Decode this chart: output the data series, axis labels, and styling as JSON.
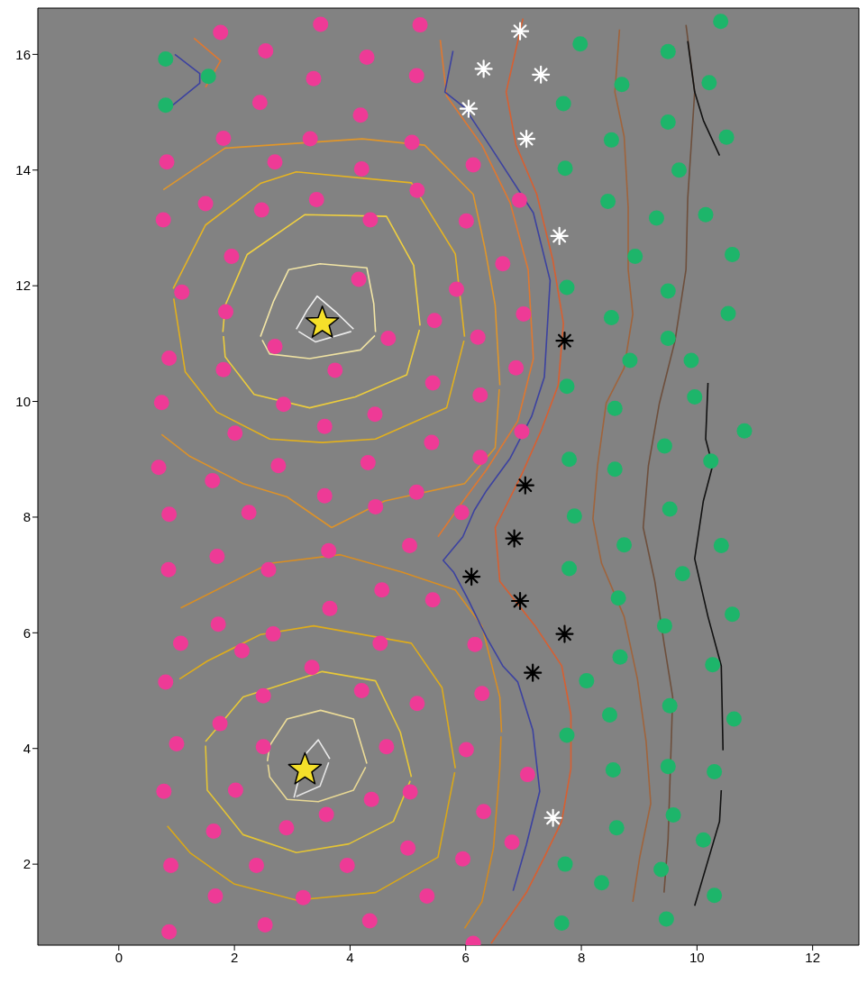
{
  "chart_data": {
    "type": "scatter",
    "xlim": [
      -1.4,
      12.8
    ],
    "ylim": [
      0.6,
      16.8
    ],
    "xticks": [
      0,
      2,
      4,
      6,
      8,
      10,
      12
    ],
    "yticks": [
      2,
      4,
      6,
      8,
      10,
      12,
      14,
      16
    ],
    "series": [
      {
        "type": "line",
        "marker": "none",
        "color": "#f2f2f2",
        "x": [
          3.07,
          3.26,
          3.43,
          3.75,
          4.06
        ],
        "values": [
          11.25,
          11.58,
          11.82,
          11.55,
          11.25
        ]
      },
      {
        "type": "line",
        "marker": "none",
        "color": "#ececec",
        "x": [
          3.11,
          3.4,
          4.02
        ],
        "values": [
          11.21,
          11.03,
          11.21
        ]
      },
      {
        "type": "line",
        "marker": "none",
        "color": "#e8e8e8",
        "x": [
          3.03,
          3.22,
          3.45,
          3.65
        ],
        "values": [
          3.15,
          3.89,
          4.15,
          3.82
        ]
      },
      {
        "type": "line",
        "marker": "none",
        "color": "#e4e4e4",
        "x": [
          3.07,
          3.48,
          3.63
        ],
        "values": [
          3.17,
          3.35,
          3.76
        ]
      },
      {
        "type": "line",
        "marker": "none",
        "color": "#f3e6a6",
        "x": [
          2.45,
          2.68,
          2.94,
          3.48,
          4.29,
          4.41,
          4.44
        ],
        "values": [
          11.12,
          11.74,
          12.28,
          12.38,
          12.31,
          11.69,
          11.2
        ]
      },
      {
        "type": "line",
        "marker": "none",
        "color": "#efe2a2",
        "x": [
          2.48,
          2.61,
          3.3,
          4.18,
          4.43
        ],
        "values": [
          11.06,
          10.82,
          10.74,
          10.89,
          11.14
        ]
      },
      {
        "type": "line",
        "marker": "none",
        "color": "#ecdc98",
        "x": [
          2.57,
          2.61,
          2.91,
          3.49,
          4.06,
          4.29
        ],
        "values": [
          3.78,
          4.05,
          4.51,
          4.66,
          4.51,
          3.74
        ]
      },
      {
        "type": "line",
        "marker": "none",
        "color": "#e8d894",
        "x": [
          2.58,
          2.61,
          2.91,
          3.45,
          4.06,
          4.27
        ],
        "values": [
          3.72,
          3.51,
          3.12,
          3.08,
          3.28,
          3.68
        ]
      },
      {
        "type": "line",
        "marker": "none",
        "color": "#f0d040",
        "x": [
          1.8,
          1.84,
          2.22,
          3.22,
          4.63,
          5.1,
          5.21
        ],
        "values": [
          11.2,
          11.66,
          12.54,
          13.23,
          13.2,
          12.35,
          11.31
        ]
      },
      {
        "type": "line",
        "marker": "none",
        "color": "#eccc3c",
        "x": [
          1.81,
          1.84,
          2.34,
          3.3,
          4.09,
          4.98,
          5.2
        ],
        "values": [
          11.13,
          10.77,
          10.12,
          9.89,
          10.08,
          10.46,
          11.24
        ]
      },
      {
        "type": "line",
        "marker": "none",
        "color": "#e8c838",
        "x": [
          1.5,
          2.15,
          3.52,
          4.44,
          4.87,
          5.06
        ],
        "values": [
          4.12,
          4.89,
          5.33,
          5.17,
          4.28,
          3.51
        ]
      },
      {
        "type": "line",
        "marker": "none",
        "color": "#e4c434",
        "x": [
          1.5,
          1.53,
          2.15,
          3.07,
          3.98,
          4.75,
          5.04
        ],
        "values": [
          4.05,
          3.28,
          2.51,
          2.2,
          2.35,
          2.74,
          3.44
        ]
      },
      {
        "type": "line",
        "marker": "none",
        "color": "#e6b422",
        "x": [
          0.94,
          1.5,
          2.45,
          3.07,
          5.06,
          5.82,
          5.98
        ],
        "values": [
          11.95,
          13.05,
          13.77,
          13.97,
          13.78,
          12.55,
          11.12
        ]
      },
      {
        "type": "line",
        "marker": "none",
        "color": "#e2b01e",
        "x": [
          0.95,
          1.15,
          1.69,
          2.61,
          3.52,
          4.44,
          5.67,
          5.97
        ],
        "values": [
          11.78,
          10.51,
          9.82,
          9.35,
          9.29,
          9.35,
          9.89,
          11.05
        ]
      },
      {
        "type": "line",
        "marker": "none",
        "color": "#deac1c",
        "x": [
          1.05,
          1.53,
          2.45,
          3.37,
          5.06,
          5.59,
          5.82
        ],
        "values": [
          5.2,
          5.51,
          5.97,
          6.12,
          5.82,
          5.05,
          3.66
        ]
      },
      {
        "type": "line",
        "marker": "none",
        "color": "#daa818",
        "x": [
          0.84,
          1.23,
          1.99,
          3.07,
          4.44,
          5.52,
          5.81
        ],
        "values": [
          2.66,
          2.2,
          1.66,
          1.38,
          1.51,
          2.12,
          3.59
        ]
      },
      {
        "type": "line",
        "marker": "none",
        "color": "#e0962a",
        "x": [
          0.77,
          1.84,
          4.21,
          5.29,
          6.13,
          6.33,
          6.51,
          6.59
        ],
        "values": [
          13.66,
          14.38,
          14.54,
          14.43,
          13.58,
          12.66,
          11.66,
          10.28
        ]
      },
      {
        "type": "line",
        "marker": "none",
        "color": "#dc922a",
        "x": [
          0.74,
          1.23,
          2.15,
          2.91,
          3.68,
          4.6,
          5.98,
          6.51,
          6.58
        ],
        "values": [
          9.43,
          9.05,
          8.58,
          8.35,
          7.82,
          8.28,
          8.58,
          9.2,
          10.21
        ]
      },
      {
        "type": "line",
        "marker": "none",
        "color": "#d88e24",
        "x": [
          1.07,
          2.61,
          3.83,
          4.9,
          5.82,
          6.28,
          6.59,
          6.62
        ],
        "values": [
          6.43,
          7.2,
          7.35,
          7.05,
          6.74,
          6.12,
          4.89,
          4.28
        ]
      },
      {
        "type": "line",
        "marker": "none",
        "color": "#d48a20",
        "x": [
          5.98,
          6.28,
          6.48,
          6.59,
          6.61
        ],
        "values": [
          0.89,
          1.35,
          2.28,
          3.66,
          4.21
        ]
      },
      {
        "type": "line",
        "marker": "none",
        "color": "#e07830",
        "x": [
          5.56,
          5.67,
          6.28,
          6.77,
          7.08,
          7.17,
          6.9,
          6.36,
          5.9,
          5.52
        ],
        "values": [
          16.25,
          15.28,
          14.43,
          13.43,
          12.28,
          10.74,
          9.66,
          8.82,
          8.2,
          7.66
        ]
      },
      {
        "type": "line",
        "marker": "none",
        "color": "#e07830",
        "x": [
          1.3,
          1.76,
          1.5
        ],
        "values": [
          16.28,
          15.89,
          15.43
        ]
      },
      {
        "type": "line",
        "marker": "none",
        "color": "#d95f30",
        "x": [
          6.99,
          6.7,
          6.87,
          7.23,
          7.51,
          7.69,
          7.6,
          7.31,
          6.97,
          6.51,
          6.59,
          7.2,
          7.66,
          7.82,
          7.82,
          7.66,
          7.36,
          7.05,
          6.44
        ],
        "values": [
          16.62,
          15.35,
          14.43,
          13.58,
          12.43,
          11.35,
          10.28,
          9.51,
          8.74,
          7.82,
          6.89,
          6.12,
          5.43,
          4.58,
          3.66,
          2.74,
          2.12,
          1.51,
          0.63
        ]
      },
      {
        "type": "line",
        "marker": "none",
        "color": "#a0643c",
        "x": [
          8.66,
          8.58,
          8.74,
          8.81,
          8.81,
          8.89,
          8.74,
          8.43,
          8.28,
          8.2,
          8.35,
          8.74,
          8.97,
          9.12,
          9.2,
          9.01,
          8.89
        ],
        "values": [
          16.43,
          15.35,
          14.58,
          13.35,
          12.28,
          11.51,
          10.58,
          9.97,
          8.89,
          7.97,
          7.2,
          6.28,
          5.2,
          4.12,
          3.05,
          2.12,
          1.35
        ]
      },
      {
        "type": "line",
        "marker": "none",
        "color": "#6e4f3c",
        "x": [
          9.81,
          9.96,
          9.84,
          9.81,
          9.62,
          9.35,
          9.16,
          9.07,
          9.27,
          9.43,
          9.58,
          9.5,
          9.43
        ],
        "values": [
          16.51,
          15.35,
          13.51,
          12.28,
          11.05,
          9.97,
          8.89,
          7.82,
          6.89,
          5.82,
          4.89,
          2.43,
          1.51
        ]
      },
      {
        "type": "line",
        "marker": "none",
        "color": "#111111",
        "x": [
          9.84,
          9.96,
          10.11,
          10.39
        ],
        "values": [
          16.23,
          15.35,
          14.86,
          14.25
        ]
      },
      {
        "type": "line",
        "marker": "none",
        "color": "#111111",
        "x": [
          10.19,
          10.15,
          10.27,
          10.11,
          9.96,
          10.19,
          10.42,
          10.45
        ],
        "values": [
          10.32,
          9.35,
          8.89,
          8.28,
          7.28,
          6.28,
          5.43,
          3.97
        ]
      },
      {
        "type": "line",
        "marker": "none",
        "color": "#111111",
        "x": [
          10.42,
          10.39,
          9.96
        ],
        "values": [
          3.28,
          2.74,
          1.28
        ]
      },
      {
        "type": "line",
        "marker": "none",
        "color": "#3c42a0",
        "x": [
          0.97,
          1.4,
          1.4,
          0.92
        ],
        "values": [
          16.0,
          15.67,
          15.5,
          15.11
        ]
      },
      {
        "type": "line",
        "marker": "none",
        "color": "#3c42a0",
        "x": [
          5.78,
          5.64,
          5.98,
          6.41,
          7.17,
          7.46,
          7.36,
          7.14,
          6.77,
          6.36,
          6.15,
          5.95,
          5.61,
          5.79,
          6.04,
          6.36,
          6.64,
          6.9,
          7.16,
          7.28,
          7.05,
          6.82
        ],
        "values": [
          16.06,
          15.35,
          15.08,
          14.43,
          13.26,
          12.09,
          10.42,
          9.74,
          9.02,
          8.46,
          8.12,
          7.66,
          7.25,
          7.05,
          6.58,
          5.92,
          5.43,
          5.15,
          4.32,
          3.26,
          2.34,
          1.54
        ]
      },
      {
        "marker": "circle",
        "color": "#ee3a96",
        "x": [
          1.76,
          3.49,
          5.21,
          2.54,
          3.37,
          4.29,
          5.15,
          2.44,
          1.81,
          4.18,
          0.83,
          2.7,
          3.31,
          5.07,
          6.13,
          4.2,
          0.77,
          1.5,
          2.47,
          3.42,
          4.35,
          5.16,
          6.01,
          6.93,
          1.95,
          1.09,
          4.15,
          5.84,
          6.64,
          1.85,
          2.7,
          4.66,
          5.46,
          6.21,
          7.0,
          0.87,
          1.81,
          3.74,
          2.85,
          0.74,
          4.43,
          5.43,
          6.25,
          6.87,
          2.01,
          3.56,
          5.41,
          6.97,
          0.69,
          1.62,
          2.76,
          4.31,
          6.25,
          0.87,
          2.25,
          3.56,
          4.44,
          5.15,
          5.93,
          0.86,
          1.7,
          2.59,
          3.63,
          5.03,
          4.55,
          3.65,
          5.43,
          1.07,
          1.72,
          2.67,
          2.13,
          4.52,
          6.16,
          3.34,
          4.2,
          0.81,
          2.5,
          5.16,
          6.28,
          1.75,
          2.5,
          4.63,
          1.0,
          6.01,
          0.78,
          2.02,
          3.59,
          4.37,
          5.04,
          7.07,
          1.64,
          2.9,
          6.31,
          0.9,
          2.38,
          3.95,
          5.0,
          5.95,
          6.8,
          1.67,
          3.19,
          5.33,
          0.87,
          2.53,
          4.34,
          6.13
        ],
        "values": [
          16.38,
          16.52,
          16.51,
          16.06,
          15.58,
          15.95,
          15.63,
          15.17,
          14.55,
          14.95,
          14.14,
          14.14,
          14.54,
          14.48,
          14.09,
          14.02,
          13.14,
          13.42,
          13.31,
          13.49,
          13.14,
          13.65,
          13.12,
          13.48,
          12.51,
          11.89,
          12.11,
          11.94,
          12.38,
          11.55,
          10.95,
          11.09,
          11.4,
          11.11,
          11.51,
          10.75,
          10.55,
          10.54,
          9.95,
          9.98,
          9.78,
          10.32,
          10.11,
          10.58,
          9.45,
          9.57,
          9.29,
          9.48,
          8.86,
          8.63,
          8.89,
          8.94,
          9.03,
          8.05,
          8.08,
          8.37,
          8.18,
          8.43,
          8.08,
          7.09,
          7.32,
          7.09,
          7.42,
          7.51,
          6.74,
          6.42,
          6.57,
          5.82,
          6.15,
          5.98,
          5.69,
          5.82,
          5.8,
          5.4,
          5.0,
          5.15,
          4.91,
          4.78,
          4.95,
          4.43,
          4.03,
          4.03,
          4.08,
          3.98,
          3.26,
          3.28,
          2.86,
          3.12,
          3.25,
          3.55,
          2.57,
          2.63,
          2.91,
          1.98,
          1.98,
          1.98,
          2.28,
          2.09,
          2.38,
          1.45,
          1.42,
          1.45,
          0.83,
          0.95,
          1.02,
          0.63
        ]
      },
      {
        "marker": "circle",
        "color": "#1db56a",
        "x": [
          0.81,
          1.55,
          0.81,
          10.41,
          7.98,
          9.5,
          8.7,
          10.21,
          7.69,
          9.5,
          8.52,
          10.51,
          7.72,
          9.69,
          8.46,
          9.3,
          10.15,
          8.93,
          10.61,
          7.75,
          9.5,
          8.52,
          9.5,
          10.54,
          8.84,
          9.9,
          7.75,
          9.96,
          8.58,
          10.82,
          9.44,
          7.79,
          8.58,
          10.24,
          9.53,
          7.88,
          8.74,
          10.42,
          7.79,
          9.75,
          8.64,
          10.61,
          9.44,
          8.67,
          10.27,
          8.09,
          9.53,
          8.49,
          10.64,
          7.75,
          8.55,
          9.5,
          10.3,
          9.59,
          8.61,
          10.11,
          7.72,
          9.38,
          8.35,
          10.3,
          7.66,
          9.47
        ],
        "values": [
          15.92,
          15.62,
          15.12,
          16.57,
          16.18,
          16.05,
          15.48,
          15.51,
          15.15,
          14.83,
          14.52,
          14.57,
          14.03,
          14.0,
          13.46,
          13.17,
          13.23,
          12.51,
          12.54,
          11.97,
          11.91,
          11.45,
          11.09,
          11.52,
          10.71,
          10.71,
          10.26,
          10.08,
          9.88,
          9.49,
          9.23,
          9.0,
          8.83,
          8.97,
          8.14,
          8.02,
          7.52,
          7.51,
          7.11,
          7.02,
          6.6,
          6.32,
          6.12,
          5.58,
          5.45,
          5.17,
          4.74,
          4.58,
          4.51,
          4.23,
          3.63,
          3.69,
          3.6,
          2.85,
          2.63,
          2.42,
          2.0,
          1.91,
          1.68,
          1.46,
          0.98,
          1.05
        ]
      },
      {
        "marker": "cross",
        "color": "#ffffff",
        "x": [
          6.94,
          6.31,
          7.3,
          6.05,
          7.05,
          7.62,
          7.51
        ],
        "values": [
          16.4,
          15.75,
          15.65,
          15.06,
          14.54,
          12.86,
          2.8
        ]
      },
      {
        "marker": "cross",
        "color": "#000000",
        "x": [
          7.71,
          7.03,
          6.84,
          6.1,
          6.94,
          7.71,
          7.16
        ],
        "values": [
          11.05,
          8.55,
          7.63,
          6.97,
          6.55,
          5.98,
          5.31
        ]
      },
      {
        "marker": "star",
        "color": "#f5e02a",
        "x": [
          3.52,
          3.22
        ],
        "values": [
          11.35,
          3.63
        ]
      }
    ]
  }
}
